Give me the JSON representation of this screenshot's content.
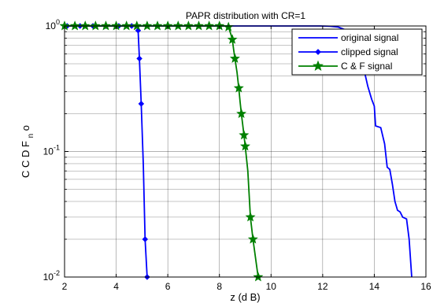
{
  "chart_data": {
    "type": "line",
    "title": "PAPR distribution with CR=1",
    "xlabel": "z (d B)",
    "ylabel_main": "C C D F",
    "ylabel_sub": "n",
    "ylabel_tail": "o",
    "xlim": [
      2,
      16
    ],
    "ylim": [
      0.01,
      1
    ],
    "yscale": "log",
    "grid": true,
    "legend_position": "top-right",
    "xticks": [
      2,
      4,
      6,
      8,
      10,
      12,
      14,
      16
    ],
    "xtick_labels": [
      "2",
      "4",
      "6",
      "8",
      "10",
      "12",
      "14",
      "16"
    ],
    "yticks": [
      0.01,
      0.1,
      1
    ],
    "ytick_base": "10",
    "ytick_exponents": [
      "-2",
      "-1",
      "0"
    ],
    "series": [
      {
        "name": "original signal",
        "color": "#0000ff",
        "marker": "none",
        "points": [
          [
            2,
            1
          ],
          [
            11.9,
            1
          ],
          [
            12.3,
            0.995
          ],
          [
            12.6,
            0.98
          ],
          [
            12.9,
            0.93
          ],
          [
            13.2,
            0.82
          ],
          [
            13.4,
            0.64
          ],
          [
            13.6,
            0.45
          ],
          [
            13.75,
            0.33
          ],
          [
            13.9,
            0.26
          ],
          [
            14.0,
            0.23
          ],
          [
            14.05,
            0.16
          ],
          [
            14.25,
            0.155
          ],
          [
            14.4,
            0.115
          ],
          [
            14.5,
            0.075
          ],
          [
            14.6,
            0.072
          ],
          [
            14.7,
            0.055
          ],
          [
            14.8,
            0.04
          ],
          [
            14.9,
            0.034
          ],
          [
            15.0,
            0.033
          ],
          [
            15.1,
            0.03
          ],
          [
            15.25,
            0.029
          ],
          [
            15.35,
            0.02
          ],
          [
            15.45,
            0.01
          ]
        ]
      },
      {
        "name": "clipped signal",
        "color": "#0000ff",
        "marker": "diamond",
        "points": [
          [
            2,
            1
          ],
          [
            4.8,
            1
          ],
          [
            4.85,
            0.92
          ],
          [
            4.9,
            0.55
          ],
          [
            4.97,
            0.24
          ],
          [
            5.05,
            0.08
          ],
          [
            5.12,
            0.02
          ],
          [
            5.2,
            0.01
          ]
        ],
        "marker_points": [
          [
            2.1,
            1
          ],
          [
            2.6,
            1
          ],
          [
            3.1,
            1
          ],
          [
            3.6,
            1
          ],
          [
            4.1,
            1
          ],
          [
            4.6,
            1
          ],
          [
            4.85,
            0.92
          ],
          [
            4.9,
            0.55
          ],
          [
            4.97,
            0.24
          ],
          [
            5.12,
            0.02
          ],
          [
            5.2,
            0.01
          ]
        ]
      },
      {
        "name": "C & F signal",
        "color": "#008000",
        "marker": "star",
        "points": [
          [
            2,
            1
          ],
          [
            8.2,
            1
          ],
          [
            8.35,
            0.98
          ],
          [
            8.45,
            0.85
          ],
          [
            8.5,
            0.78
          ],
          [
            8.55,
            0.65
          ],
          [
            8.6,
            0.55
          ],
          [
            8.68,
            0.43
          ],
          [
            8.75,
            0.32
          ],
          [
            8.8,
            0.25
          ],
          [
            8.85,
            0.2
          ],
          [
            8.9,
            0.165
          ],
          [
            8.95,
            0.135
          ],
          [
            9.0,
            0.11
          ],
          [
            9.1,
            0.07
          ],
          [
            9.2,
            0.03
          ],
          [
            9.3,
            0.02
          ],
          [
            9.5,
            0.01
          ]
        ],
        "marker_points": [
          [
            2.0,
            1
          ],
          [
            2.4,
            1
          ],
          [
            2.8,
            1
          ],
          [
            3.2,
            1
          ],
          [
            3.6,
            1
          ],
          [
            4.0,
            1
          ],
          [
            4.4,
            1
          ],
          [
            4.8,
            1
          ],
          [
            5.2,
            1
          ],
          [
            5.6,
            1
          ],
          [
            6.0,
            1
          ],
          [
            6.4,
            1
          ],
          [
            6.8,
            1
          ],
          [
            7.2,
            1
          ],
          [
            7.6,
            1
          ],
          [
            8.0,
            1
          ],
          [
            8.35,
            0.98
          ],
          [
            8.5,
            0.78
          ],
          [
            8.6,
            0.55
          ],
          [
            8.75,
            0.32
          ],
          [
            8.85,
            0.2
          ],
          [
            8.95,
            0.135
          ],
          [
            9.0,
            0.11
          ],
          [
            9.2,
            0.03
          ],
          [
            9.3,
            0.02
          ],
          [
            9.5,
            0.01
          ]
        ]
      }
    ]
  }
}
